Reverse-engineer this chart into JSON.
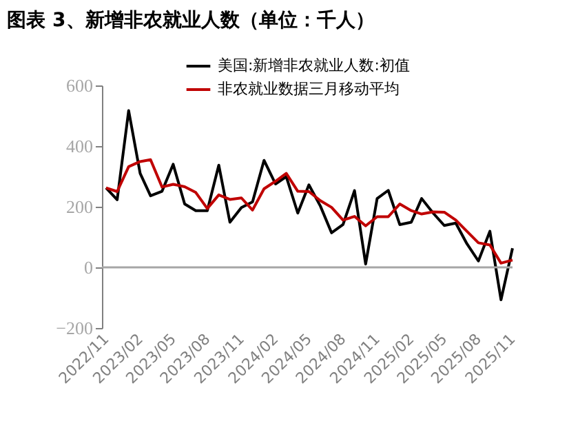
{
  "chart_data": {
    "type": "line",
    "title": "图表 3、新增非农就业人数（单位：千人）",
    "x": [
      "2022-11",
      "2022-12",
      "2023-01",
      "2023-02",
      "2023-03",
      "2023-04",
      "2023-05",
      "2023-06",
      "2023-07",
      "2023-08",
      "2023-09",
      "2023-10",
      "2023-11",
      "2023-12",
      "2024-01",
      "2024-02",
      "2024-03",
      "2024-04",
      "2024-05",
      "2024-06",
      "2024-07",
      "2024-08",
      "2024-09",
      "2024-10",
      "2024-11",
      "2024-12",
      "2025-01",
      "2025-02",
      "2025-03",
      "2025-04",
      "2025-05",
      "2025-06",
      "2025-07",
      "2025-08",
      "2025-09",
      "2025-10",
      "2025-11"
    ],
    "series": [
      {
        "name": "美国:新增非农就业人数:初值",
        "color": "#000000",
        "values": [
          262,
          223,
          517,
          310,
          236,
          251,
          340,
          209,
          187,
          187,
          337,
          149,
          197,
          216,
          353,
          275,
          299,
          179,
          272,
          202,
          114,
          141,
          253,
          11,
          227,
          254,
          141,
          149,
          227,
          179,
          138,
          146,
          78,
          21,
          119,
          -107,
          63
        ]
      },
      {
        "name": "非农就业数据三月移动平均",
        "color": "#c00000",
        "values": [
          262,
          250,
          332,
          349,
          355,
          265,
          274,
          266,
          247,
          194,
          239,
          224,
          229,
          189,
          259,
          284,
          310,
          251,
          250,
          220,
          198,
          156,
          168,
          137,
          167,
          167,
          209,
          187,
          176,
          183,
          182,
          156,
          119,
          81,
          74,
          14,
          24
        ]
      }
    ],
    "xlim": [
      "2022-10-21",
      "2025-11"
    ],
    "xticks": [
      {
        "value": "2022-11",
        "label": "2022/11"
      },
      {
        "value": "2023-02",
        "label": "2023/02"
      },
      {
        "value": "2023-05",
        "label": "2023/05"
      },
      {
        "value": "2023-08",
        "label": "2023/08"
      },
      {
        "value": "2023-11",
        "label": "2023/11"
      },
      {
        "value": "2024-02",
        "label": "2024/02"
      },
      {
        "value": "2024-05",
        "label": "2024/05"
      },
      {
        "value": "2024-08",
        "label": "2024/08"
      },
      {
        "value": "2024-11",
        "label": "2024/11"
      },
      {
        "value": "2025-02",
        "label": "2025/02"
      },
      {
        "value": "2025-05",
        "label": "2025/05"
      },
      {
        "value": "2025-08",
        "label": "2025/08"
      },
      {
        "value": "2025-11",
        "label": "2025/11"
      }
    ],
    "ylim": [
      -200,
      600
    ],
    "yticks": [
      -200,
      0,
      200,
      400,
      600
    ],
    "ref_lines": [
      {
        "axis": "y",
        "value": 0,
        "color": "#a6a6a6"
      }
    ],
    "grid": false,
    "legend": "top right",
    "marker": "none",
    "line_style": "solid"
  }
}
